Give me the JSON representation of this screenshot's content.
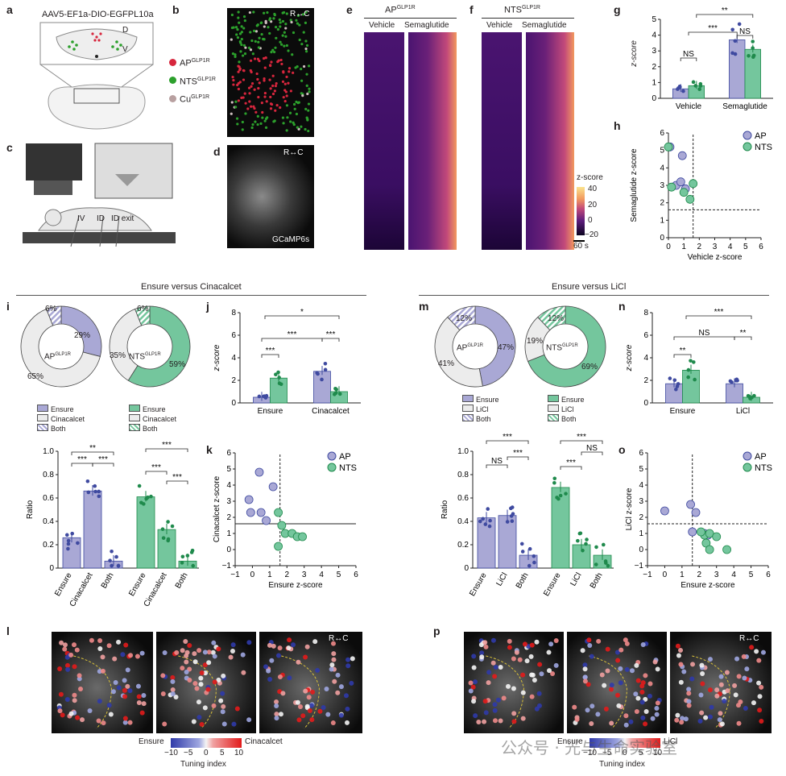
{
  "panels": {
    "a": "a",
    "b": "b",
    "c": "c",
    "d": "d",
    "e": "e",
    "f": "f",
    "g": "g",
    "h": "h",
    "i": "i",
    "j": "j",
    "k": "k",
    "l": "l",
    "m": "m",
    "n": "n",
    "o": "o",
    "p": "p"
  },
  "panel_a": {
    "virus": "AAV5-EF1a-DIO-EGFPL10a",
    "axis_d": "D",
    "axis_v": "V"
  },
  "panel_b": {
    "orient": "R↔C",
    "legend": [
      {
        "name": "AP",
        "sup": "GLP1R",
        "color": "#d7263d"
      },
      {
        "name": "NTS",
        "sup": "GLP1R",
        "color": "#2ca02c"
      },
      {
        "name": "Cu",
        "sup": "GLP1R",
        "color": "#b8a0a0"
      }
    ]
  },
  "panel_c": {
    "labels": [
      "IV",
      "ID",
      "ID exit"
    ]
  },
  "panel_d": {
    "orient": "R↔C",
    "indicator": "GCaMP6s"
  },
  "panel_e": {
    "title": "AP",
    "title_sup": "GLP1R",
    "cols": [
      "Vehicle",
      "Semaglutide"
    ]
  },
  "panel_f": {
    "title": "NTS",
    "title_sup": "GLP1R",
    "cols": [
      "Vehicle",
      "Semaglutide"
    ]
  },
  "colorbar": {
    "title": "z-score",
    "ticks": [
      "40",
      "20",
      "0",
      "−20"
    ],
    "scale": "60 s"
  },
  "panel_g": {
    "ylabel": "z-score",
    "yticks": [
      "0",
      "1",
      "2",
      "3",
      "4",
      "5"
    ],
    "groups": [
      "Vehicle",
      "Semaglutide"
    ],
    "sig": [
      "NS",
      "***",
      "NS",
      "**"
    ]
  },
  "panel_h": {
    "xlabel": "Vehicle z-score",
    "ylabel": "Semaglutide z-score",
    "xticks": [
      "0",
      "1",
      "2",
      "3",
      "4",
      "5",
      "6"
    ],
    "yticks": [
      "0",
      "1",
      "2",
      "3",
      "4",
      "5",
      "6"
    ],
    "legend": [
      "AP",
      "NTS"
    ]
  },
  "section_left": {
    "title": "Ensure versus Cinacalcet"
  },
  "section_right": {
    "title": "Ensure versus LiCl"
  },
  "panel_i": {
    "ap": {
      "center": "AP",
      "sup": "GLP1R",
      "pcts": [
        "29%",
        "65%",
        "6%"
      ]
    },
    "nts": {
      "center": "NTS",
      "sup": "GLP1R",
      "pcts": [
        "59%",
        "35%",
        "6%"
      ]
    },
    "legend": [
      "Ensure",
      "Cinacalcet",
      "Both"
    ],
    "ylabel": "Ratio",
    "yticks": [
      "0",
      "0.2",
      "0.4",
      "0.6",
      "0.8",
      "1.0"
    ],
    "bars": [
      "Ensure",
      "Cinacalcet",
      "Both",
      "Ensure",
      "Cinacalcet",
      "Both"
    ],
    "sig": [
      "**",
      "***",
      "***",
      "***",
      "***",
      "***"
    ]
  },
  "panel_j": {
    "ylabel": "z-score",
    "yticks": [
      "0",
      "2",
      "4",
      "6",
      "8"
    ],
    "groups": [
      "Ensure",
      "Cinacalcet"
    ],
    "sig": [
      "*",
      "***",
      "***",
      "***"
    ]
  },
  "panel_k": {
    "xlabel": "Ensure z-score",
    "ylabel": "Cinacalcet z-score",
    "xticks": [
      "−1",
      "0",
      "1",
      "2",
      "3",
      "4",
      "5",
      "6"
    ],
    "yticks": [
      "−1",
      "0",
      "1",
      "2",
      "3",
      "4",
      "5",
      "6"
    ],
    "legend": [
      "AP",
      "NTS"
    ]
  },
  "panel_m": {
    "ap": {
      "center": "AP",
      "sup": "GLP1R",
      "pcts": [
        "47%",
        "41%",
        "12%"
      ]
    },
    "nts": {
      "center": "NTS",
      "sup": "GLP1R",
      "pcts": [
        "69%",
        "19%",
        "12%"
      ]
    },
    "legend": [
      "Ensure",
      "LiCl",
      "Both"
    ],
    "ylabel": "Ratio",
    "yticks": [
      "0",
      "0.2",
      "0.4",
      "0.6",
      "0.8",
      "1.0"
    ],
    "bars": [
      "Ensure",
      "LiCl",
      "Both",
      "Ensure",
      "LiCl",
      "Both"
    ],
    "sig": [
      "***",
      "NS",
      "***",
      "***",
      "NS",
      "***"
    ]
  },
  "panel_n": {
    "ylabel": "z-score",
    "yticks": [
      "0",
      "2",
      "4",
      "6",
      "8"
    ],
    "groups": [
      "Ensure",
      "LiCl"
    ],
    "sig": [
      "***",
      "NS",
      "**",
      "**"
    ]
  },
  "panel_o": {
    "xlabel": "Ensure z-score",
    "ylabel": "LiCl z-score",
    "xticks": [
      "−1",
      "0",
      "1",
      "2",
      "3",
      "4",
      "5",
      "6"
    ],
    "yticks": [
      "−1",
      "0",
      "1",
      "2",
      "3",
      "4",
      "5",
      "6"
    ],
    "legend": [
      "AP",
      "NTS"
    ]
  },
  "panel_l": {
    "orient": "R↔C",
    "left": "Ensure",
    "right": "Cinacalcet",
    "ticks": [
      "−10",
      "−5",
      "0",
      "5",
      "10"
    ],
    "title": "Tuning index"
  },
  "panel_p": {
    "orient": "R↔C",
    "left": "Ensure",
    "right": "LiCl",
    "ticks": [
      "−10",
      "−5",
      "0",
      "5",
      "10"
    ],
    "title": "Tuning index"
  },
  "watermark": "公众号 · 光与生命实验室",
  "chart_data": [
    {
      "id": "g",
      "type": "bar",
      "title": "",
      "categories": [
        "Vehicle",
        "Semaglutide"
      ],
      "series": [
        {
          "name": "AP",
          "values": [
            0.6,
            3.7
          ]
        },
        {
          "name": "NTS",
          "values": [
            0.8,
            3.1
          ]
        }
      ],
      "ylabel": "z-score",
      "ylim": [
        0,
        5
      ]
    },
    {
      "id": "h",
      "type": "scatter",
      "xlabel": "Vehicle z-score",
      "ylabel": "Semaglutide z-score",
      "xlim": [
        0,
        6
      ],
      "ylim": [
        0,
        6
      ],
      "series": [
        {
          "name": "AP",
          "points": [
            [
              0.1,
              5.2
            ],
            [
              0.9,
              4.7
            ],
            [
              0.5,
              3.0
            ],
            [
              0.8,
              3.2
            ],
            [
              1.1,
              2.8
            ]
          ]
        },
        {
          "name": "NTS",
          "points": [
            [
              0.0,
              5.2
            ],
            [
              0.2,
              2.9
            ],
            [
              1.6,
              3.1
            ],
            [
              1.0,
              2.6
            ],
            [
              1.4,
              2.2
            ]
          ]
        }
      ]
    },
    {
      "id": "i-ap",
      "type": "pie",
      "categories": [
        "Ensure",
        "Cinacalcet",
        "Both"
      ],
      "values": [
        29,
        65,
        6
      ]
    },
    {
      "id": "i-nts",
      "type": "pie",
      "categories": [
        "Ensure",
        "Cinacalcet",
        "Both"
      ],
      "values": [
        59,
        35,
        6
      ]
    },
    {
      "id": "i-bar",
      "type": "bar",
      "categories": [
        "Ensure",
        "Cinacalcet",
        "Both",
        "Ensure",
        "Cinacalcet",
        "Both"
      ],
      "values": [
        0.26,
        0.66,
        0.06,
        0.61,
        0.33,
        0.06
      ],
      "ylabel": "Ratio",
      "ylim": [
        0,
        1.0
      ]
    },
    {
      "id": "j",
      "type": "bar",
      "categories": [
        "Ensure",
        "Cinacalcet"
      ],
      "series": [
        {
          "name": "AP",
          "values": [
            0.5,
            2.8
          ]
        },
        {
          "name": "NTS",
          "values": [
            2.2,
            1.0
          ]
        }
      ],
      "ylabel": "z-score",
      "ylim": [
        0,
        8
      ]
    },
    {
      "id": "k",
      "type": "scatter",
      "xlabel": "Ensure z-score",
      "ylabel": "Cinacalcet z-score",
      "xlim": [
        -1,
        6
      ],
      "ylim": [
        -1,
        6
      ],
      "series": [
        {
          "name": "AP",
          "points": [
            [
              0.4,
              4.8
            ],
            [
              1.2,
              3.9
            ],
            [
              -0.2,
              3.1
            ],
            [
              -0.1,
              2.3
            ],
            [
              0.5,
              2.3
            ],
            [
              0.8,
              1.8
            ]
          ]
        },
        {
          "name": "NTS",
          "points": [
            [
              1.5,
              2.3
            ],
            [
              1.7,
              1.5
            ],
            [
              1.9,
              1.0
            ],
            [
              2.3,
              1.0
            ],
            [
              2.6,
              0.8
            ],
            [
              2.9,
              0.8
            ],
            [
              1.5,
              0.2
            ]
          ]
        }
      ]
    },
    {
      "id": "m-ap",
      "type": "pie",
      "categories": [
        "Ensure",
        "LiCl",
        "Both"
      ],
      "values": [
        47,
        41,
        12
      ]
    },
    {
      "id": "m-nts",
      "type": "pie",
      "categories": [
        "Ensure",
        "LiCl",
        "Both"
      ],
      "values": [
        69,
        19,
        12
      ]
    },
    {
      "id": "m-bar",
      "type": "bar",
      "categories": [
        "Ensure",
        "LiCl",
        "Both",
        "Ensure",
        "LiCl",
        "Both"
      ],
      "values": [
        0.43,
        0.45,
        0.11,
        0.69,
        0.2,
        0.11
      ],
      "ylabel": "Ratio",
      "ylim": [
        0,
        1.0
      ]
    },
    {
      "id": "n",
      "type": "bar",
      "categories": [
        "Ensure",
        "LiCl"
      ],
      "series": [
        {
          "name": "AP",
          "values": [
            1.7,
            1.7
          ]
        },
        {
          "name": "NTS",
          "values": [
            2.9,
            0.5
          ]
        }
      ],
      "ylabel": "z-score",
      "ylim": [
        0,
        8
      ]
    },
    {
      "id": "o",
      "type": "scatter",
      "xlabel": "Ensure z-score",
      "ylabel": "LiCl z-score",
      "xlim": [
        -1,
        6
      ],
      "ylim": [
        -1,
        6
      ],
      "series": [
        {
          "name": "AP",
          "points": [
            [
              0,
              2.4
            ],
            [
              1.5,
              2.8
            ],
            [
              1.8,
              2.3
            ],
            [
              1.6,
              1.1
            ],
            [
              2.3,
              1.0
            ],
            [
              2.5,
              0.9
            ]
          ]
        },
        {
          "name": "NTS",
          "points": [
            [
              2.3,
              0.9
            ],
            [
              2.6,
              1.0
            ],
            [
              3.0,
              0.8
            ],
            [
              2.4,
              0.4
            ],
            [
              2.6,
              0.0
            ],
            [
              3.6,
              0.0
            ],
            [
              2.1,
              1.1
            ]
          ]
        }
      ]
    }
  ]
}
